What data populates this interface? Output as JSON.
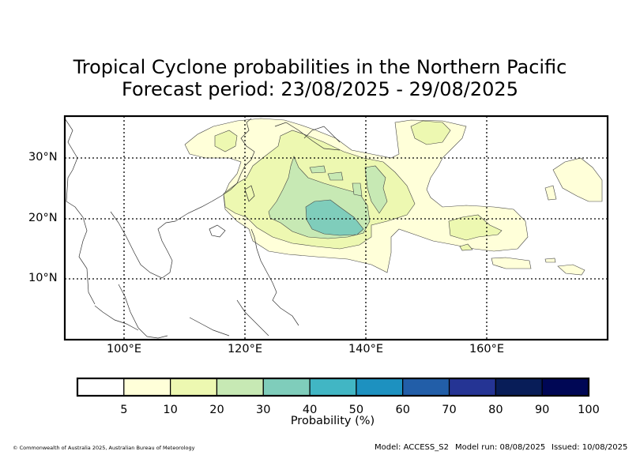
{
  "title": {
    "line1": "Tropical Cyclone probabilities in the Northern Pacific",
    "line2": "Forecast period: 23/08/2025 - 29/08/2025"
  },
  "map": {
    "lat_labels": [
      "30°N",
      "20°N",
      "10°N"
    ],
    "lon_labels": [
      "100°E",
      "120°E",
      "140°E",
      "160°E"
    ],
    "gridlines": "dotted"
  },
  "colorbar": {
    "label": "Probability (%)",
    "ticks": [
      "5",
      "10",
      "20",
      "30",
      "40",
      "50",
      "60",
      "70",
      "80",
      "90",
      "100"
    ],
    "colors": [
      "#ffffff",
      "#ffffd9",
      "#edf8b1",
      "#c7e9b4",
      "#7fcdbb",
      "#41b6c4",
      "#1d91c0",
      "#225ea8",
      "#253494",
      "#081d58",
      "#000755"
    ]
  },
  "footer": {
    "copyright": "© Commonwealth of Australia 2025, Australian Bureau of Meteorology",
    "model": "Model: ACCESS_S2",
    "model_run": "Model run: 08/08/2025",
    "issued": "Issued: 10/08/2025"
  }
}
